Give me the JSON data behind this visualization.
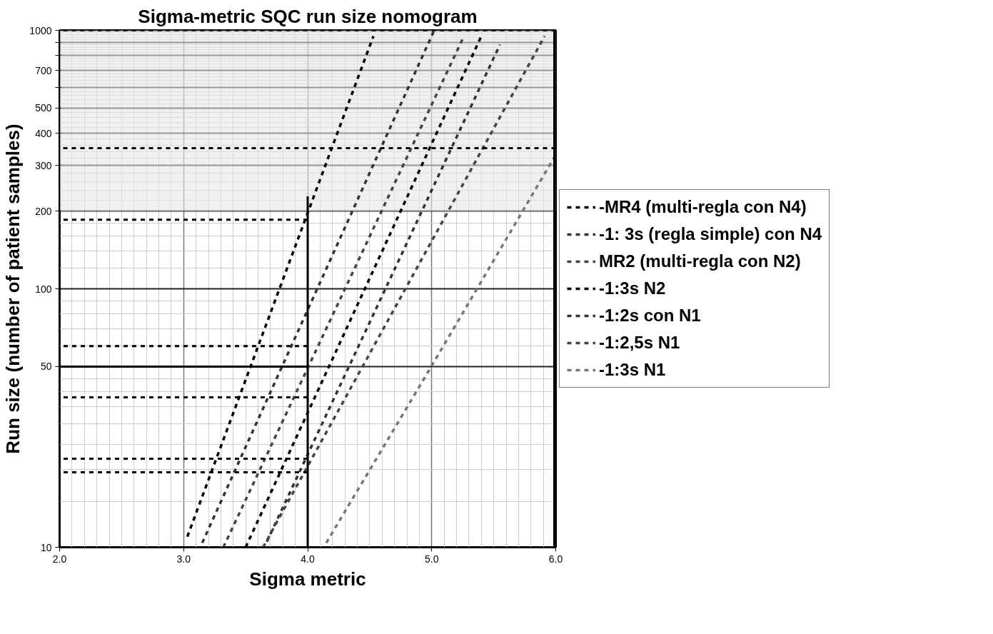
{
  "chart_data": {
    "type": "line",
    "title": "Sigma-metric SQC run size nomogram",
    "xlabel": "Sigma metric",
    "ylabel": "Run size (number of patient samples)",
    "log": "y",
    "xlim": [
      2,
      6
    ],
    "ylim": [
      10,
      1000
    ],
    "xticks": [
      {
        "value": 2,
        "label": "2.0"
      },
      {
        "value": 3,
        "label": "3.0"
      },
      {
        "value": 4,
        "label": "4.0"
      },
      {
        "value": 5,
        "label": "5.0"
      },
      {
        "value": 6,
        "label": "6.0"
      }
    ],
    "yticks": [
      10,
      50,
      100,
      200,
      300,
      400,
      500,
      {
        "value": 600,
        "label": null
      },
      700,
      {
        "value": 800,
        "label": null
      },
      {
        "value": 900,
        "label": null
      },
      1000
    ],
    "grid": true,
    "legend": "right",
    "marker": "none",
    "line_style": "dashed",
    "bands": [
      {
        "axis": "y",
        "from": 200,
        "to": 1000,
        "color": "#e6e6e6"
      }
    ],
    "ref_lines": [
      {
        "axis": "x",
        "value": 6,
        "color": "#000000",
        "line_style": "solid"
      }
    ],
    "series": [
      {
        "name": "-MR4 (multi-regla con N4)",
        "color": "#000000",
        "x": [
          3.03,
          4.53
        ],
        "values": [
          11,
          950
        ]
      },
      {
        "name": "-1: 3s (regla simple) con N4",
        "color": "#333333",
        "x": [
          3.15,
          5.02
        ],
        "values": [
          10.4,
          1000
        ]
      },
      {
        "name": "MR2 (multi-regla con N2)",
        "color": "#444444",
        "x": [
          3.32,
          5.26
        ],
        "values": [
          10,
          950
        ]
      },
      {
        "name": "-1:3s N2",
        "color": "#000000",
        "x": [
          3.5,
          5.4
        ],
        "values": [
          10,
          950
        ]
      },
      {
        "name": "-1:2s con N1",
        "color": "#333333",
        "x": [
          3.67,
          5.55
        ],
        "values": [
          10.5,
          880
        ]
      },
      {
        "name": "-1:2,5s N1",
        "color": "#444444",
        "x": [
          3.64,
          5.91
        ],
        "values": [
          10,
          950
        ]
      },
      {
        "name": "-1:3s N1",
        "color": "#777777",
        "x": [
          4.15,
          4.98,
          6.0
        ],
        "values": [
          10.4,
          48.5,
          330
        ]
      },
      {
        "color": "#000000",
        "line_style": "solid",
        "x": [
          4,
          4
        ],
        "values": [
          10,
          228
        ]
      },
      {
        "color": "#000000",
        "x": [
          6,
          2
        ],
        "values": [
          1000,
          1000
        ]
      },
      {
        "color": "#000000",
        "x": [
          6,
          2
        ],
        "values": [
          350,
          350
        ]
      },
      {
        "color": "#000000",
        "x": [
          4,
          2
        ],
        "values": [
          185,
          185
        ]
      },
      {
        "color": "#000000",
        "x": [
          4,
          2
        ],
        "values": [
          60,
          60
        ]
      },
      {
        "color": "#000000",
        "line_style": "solid",
        "x": [
          4,
          2
        ],
        "values": [
          50,
          50
        ]
      },
      {
        "color": "#000000",
        "x": [
          4,
          2
        ],
        "values": [
          38,
          38
        ]
      },
      {
        "color": "#000000",
        "x": [
          4,
          2
        ],
        "values": [
          22,
          22
        ]
      },
      {
        "color": "#000000",
        "x": [
          4,
          2
        ],
        "values": [
          19.5,
          19.5
        ]
      }
    ]
  }
}
